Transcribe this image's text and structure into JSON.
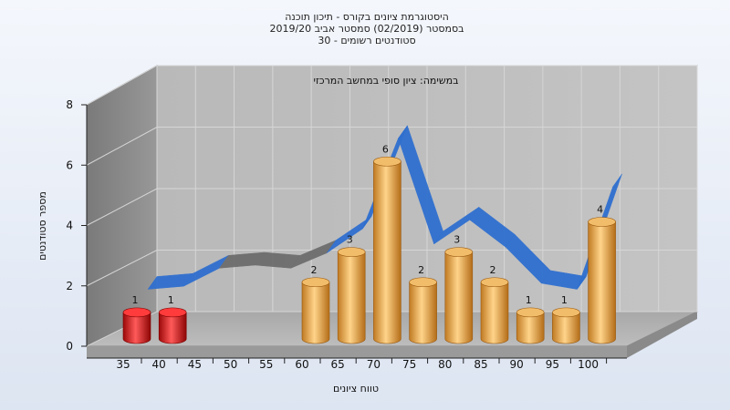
{
  "chart_data": {
    "type": "bar",
    "title_lines": [
      "היסטוגרמת ציונים בקורס - תיכון תוכנה",
      "בסמסטר  (02/2019)  סמסטר אביב 2019/20",
      "סטודנטים רשומים - 30"
    ],
    "annotation": "במשימה: ציון סופי במחשב המרכזי",
    "xlabel": "טווח ציונים",
    "ylabel": "מספר סטודנטים",
    "x_ticks": [
      "35",
      "40",
      "45",
      "50",
      "55",
      "60",
      "65",
      "70",
      "75",
      "80",
      "85",
      "90",
      "95",
      "100"
    ],
    "y_ticks": [
      "0",
      "2",
      "4",
      "6",
      "8"
    ],
    "ylim": [
      0,
      8
    ],
    "categories": [
      "35",
      "40",
      "45",
      "50",
      "55",
      "60",
      "65",
      "70",
      "75",
      "80",
      "85",
      "90",
      "95",
      "100"
    ],
    "values": [
      1,
      1,
      0,
      0,
      0,
      2,
      3,
      6,
      2,
      3,
      2,
      1,
      1,
      4
    ],
    "data_labels": [
      "1",
      "1",
      "",
      "",
      "",
      "2",
      "3",
      "6",
      "2",
      "3",
      "2",
      "1",
      "1",
      "4"
    ],
    "bar_colors": [
      "#e01818",
      "#e01818",
      "#e5a74a",
      "#e5a74a",
      "#e5a74a",
      "#e5a74a",
      "#e5a74a",
      "#e5a74a",
      "#e5a74a",
      "#e5a74a",
      "#e5a74a",
      "#e5a74a",
      "#e5a74a",
      "#e5a74a"
    ],
    "trend_values": [
      1.6,
      1.7,
      2.3,
      2.4,
      2.3,
      2.8,
      3.6,
      6.6,
      3.1,
      3.9,
      3.0,
      1.8,
      1.6,
      5.0
    ],
    "trend_color": "#2f6fcf",
    "trend_grey_color": "#6d6d6d",
    "grid": true,
    "legend": "none"
  }
}
